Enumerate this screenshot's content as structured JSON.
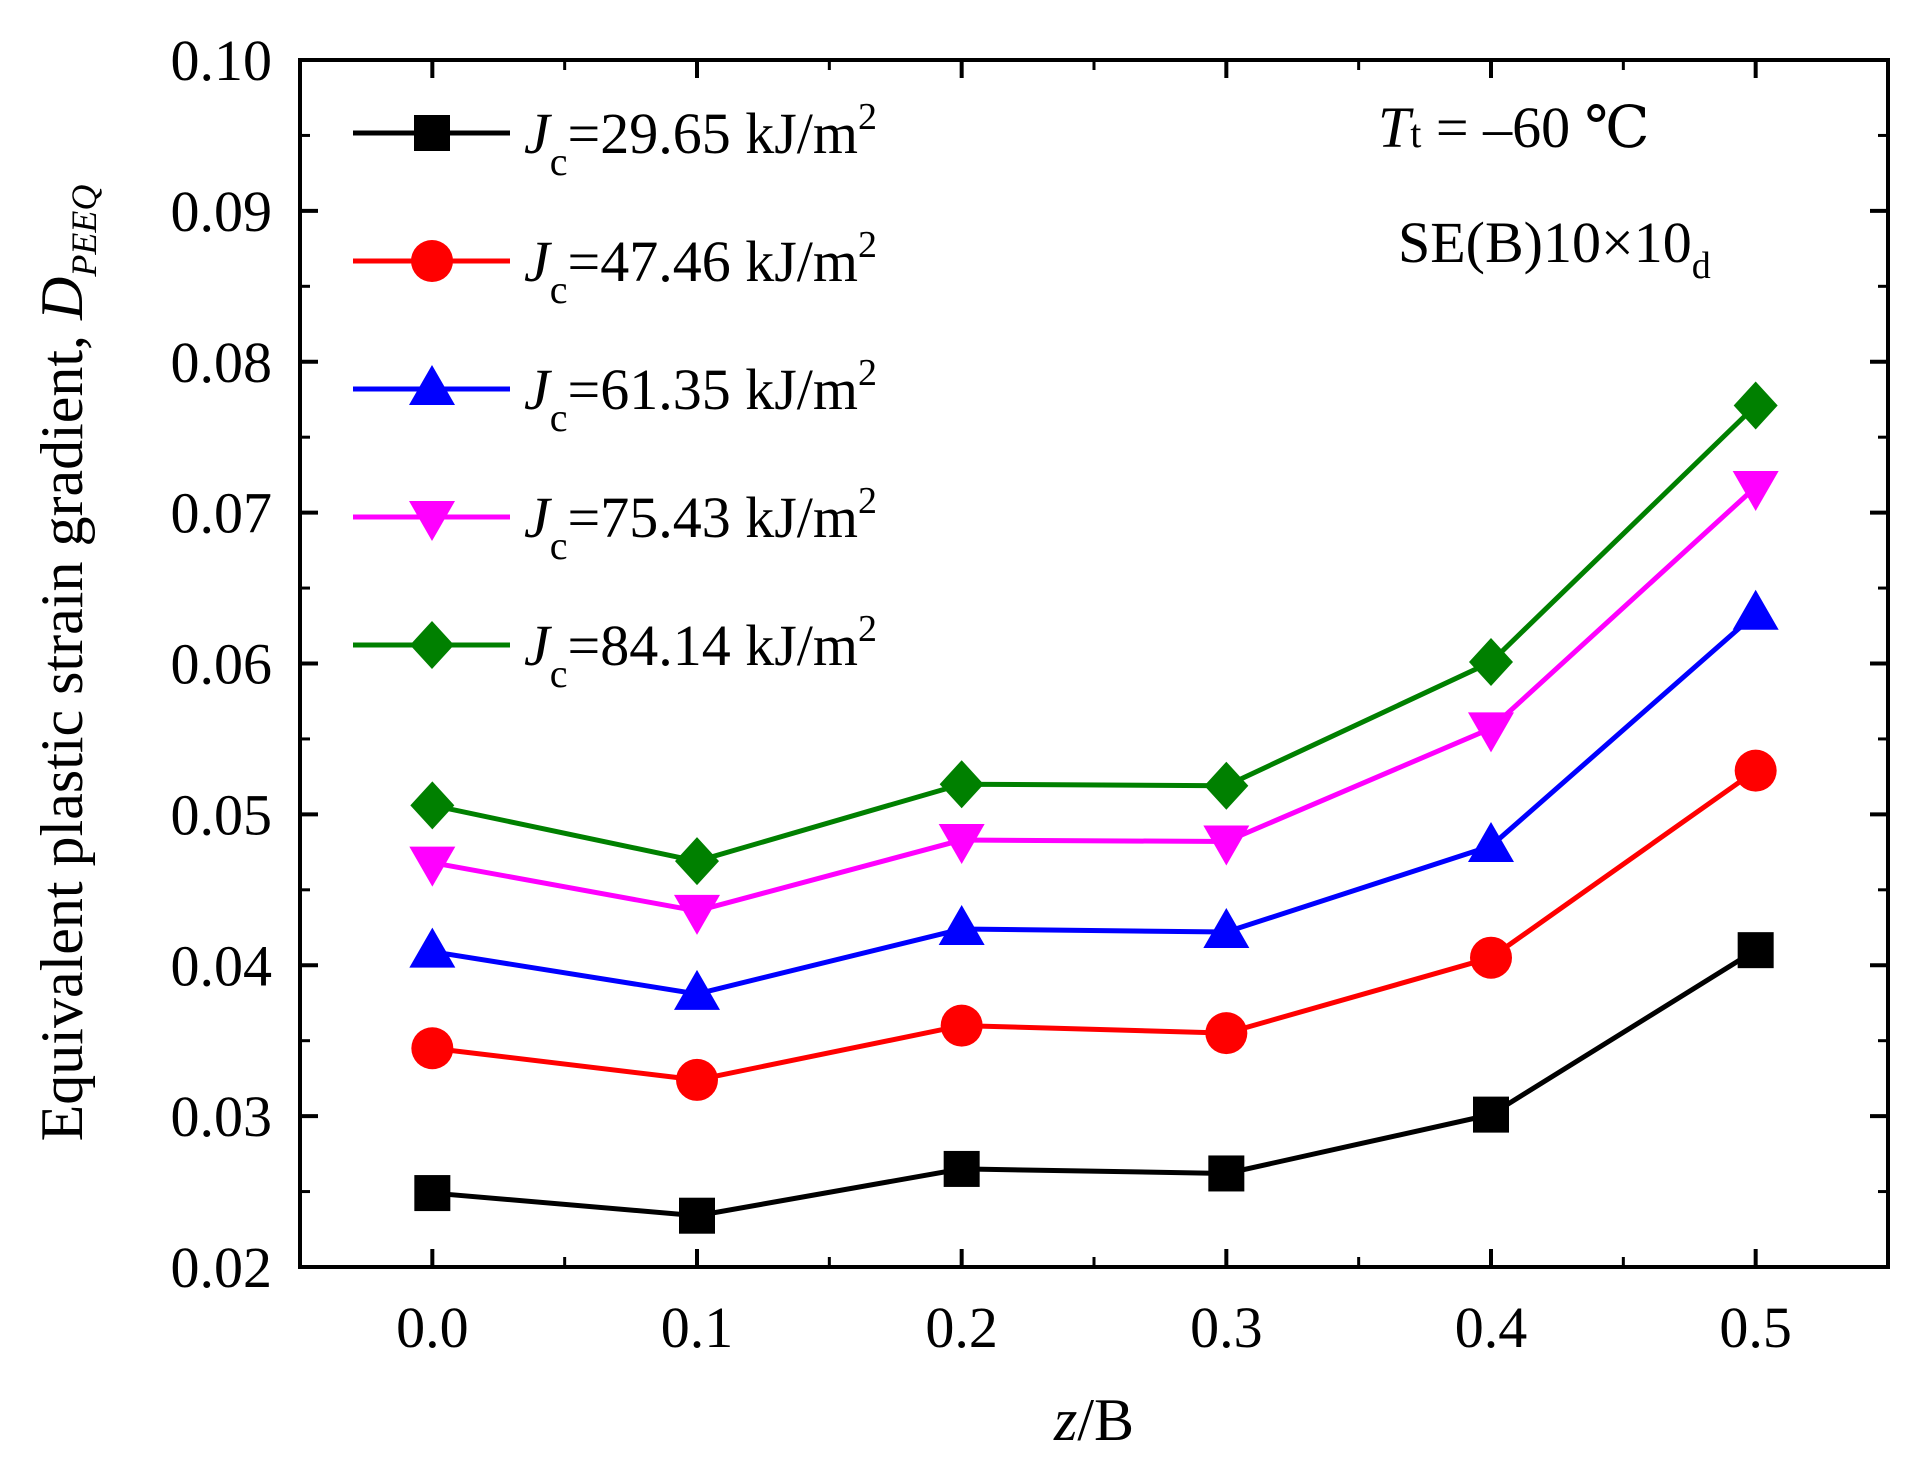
{
  "chart_data": {
    "type": "line",
    "x": [
      0.0,
      0.1,
      0.2,
      0.3,
      0.4,
      0.5
    ],
    "x_tick_labels": [
      "0.0",
      "0.1",
      "0.2",
      "0.3",
      "0.4",
      "0.5"
    ],
    "xlim": [
      -0.05,
      0.55
    ],
    "ylim": [
      0.02,
      0.1
    ],
    "y_ticks": [
      0.02,
      0.03,
      0.04,
      0.05,
      0.06,
      0.07,
      0.08,
      0.09,
      0.1
    ],
    "y_tick_labels": [
      "0.02",
      "0.03",
      "0.04",
      "0.05",
      "0.06",
      "0.07",
      "0.08",
      "0.09",
      "0.10"
    ],
    "xlabel": {
      "italic_part": "z",
      "rest": "/B"
    },
    "xlabel_full": "z/B",
    "ylabel": {
      "main": "Equivalent plastic strain gradient, ",
      "symbol": "D",
      "subscript": "PEEQ"
    },
    "ylabel_full": "Equivalent plastic strain gradient, DPEEQ",
    "legend_position": "top-left",
    "grid": false,
    "series": [
      {
        "name": "Jc=29.65 kJ/m2",
        "symbol": "J",
        "sub": "c",
        "eq": "=29.65 kJ/m",
        "sup": "2",
        "color": "#000000",
        "marker": "square",
        "values": [
          0.0249,
          0.0234,
          0.0265,
          0.0262,
          0.0301,
          0.041
        ]
      },
      {
        "name": "Jc=47.46 kJ/m2",
        "symbol": "J",
        "sub": "c",
        "eq": "=47.46 kJ/m",
        "sup": "2",
        "color": "#ff0000",
        "marker": "circle",
        "values": [
          0.0345,
          0.0324,
          0.036,
          0.0355,
          0.0405,
          0.0529
        ]
      },
      {
        "name": "Jc=61.35 kJ/m2",
        "symbol": "J",
        "sub": "c",
        "eq": "=61.35 kJ/m",
        "sup": "2",
        "color": "#0000ff",
        "marker": "triangle-up",
        "values": [
          0.0409,
          0.0381,
          0.0424,
          0.0422,
          0.0479,
          0.0633
        ]
      },
      {
        "name": "Jc=75.43 kJ/m2",
        "symbol": "J",
        "sub": "c",
        "eq": "=75.43 kJ/m",
        "sup": "2",
        "color": "#ff00ff",
        "marker": "triangle-down",
        "values": [
          0.0468,
          0.0436,
          0.0483,
          0.0482,
          0.0557,
          0.0717
        ]
      },
      {
        "name": "Jc=84.14 kJ/m2",
        "symbol": "J",
        "sub": "c",
        "eq": "=84.14 kJ/m",
        "sup": "2",
        "color": "#008000",
        "marker": "diamond",
        "values": [
          0.0506,
          0.0469,
          0.052,
          0.0519,
          0.0601,
          0.0771
        ]
      }
    ],
    "annotations": [
      {
        "symbol": "T",
        "sub": "t",
        "rest": " = –60 ℃",
        "full": "Tt = –60 ℃"
      },
      {
        "text": "SE(B)10×10",
        "sub": "d",
        "full": "SE(B)10×10d"
      }
    ]
  }
}
